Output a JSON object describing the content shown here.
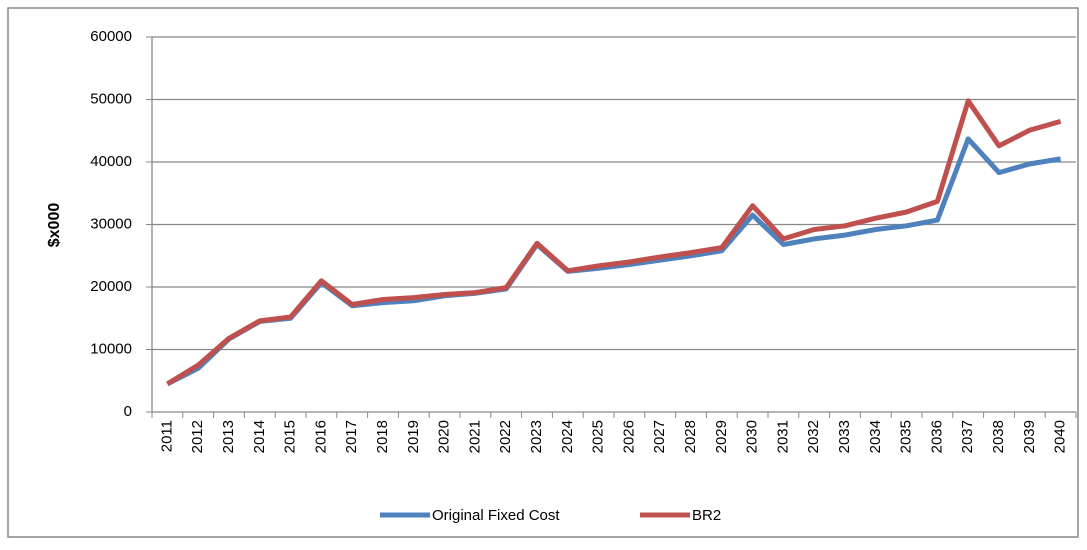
{
  "chart_data": {
    "type": "line",
    "y_label": "$x000",
    "categories": [
      "2011",
      "2012",
      "2013",
      "2014",
      "2015",
      "2016",
      "2017",
      "2018",
      "2019",
      "2020",
      "2021",
      "2022",
      "2023",
      "2024",
      "2025",
      "2026",
      "2027",
      "2028",
      "2029",
      "2030",
      "2031",
      "2032",
      "2033",
      "2034",
      "2035",
      "2036",
      "2037",
      "2038",
      "2039",
      "2040"
    ],
    "series": [
      {
        "name": "Original Fixed Cost",
        "color": "#4f81bd",
        "values": [
          4500,
          7000,
          11700,
          14500,
          15000,
          20700,
          17000,
          17500,
          17800,
          18600,
          19000,
          19700,
          26800,
          22500,
          23000,
          23600,
          24300,
          25000,
          25800,
          31500,
          26800,
          27700,
          28300,
          29200,
          29800,
          30700,
          43700,
          38300,
          39700,
          40500
        ]
      },
      {
        "name": "BR2",
        "color": "#c0504d",
        "values": [
          4500,
          7500,
          11800,
          14600,
          15200,
          21000,
          17200,
          18000,
          18300,
          18800,
          19100,
          19900,
          27000,
          22600,
          23400,
          24000,
          24800,
          25500,
          26300,
          33000,
          27700,
          29200,
          29800,
          31000,
          32000,
          33700,
          49800,
          42600,
          45100,
          46500
        ]
      }
    ],
    "ylim": [
      0,
      60000
    ],
    "yticks": [
      0,
      10000,
      20000,
      30000,
      40000,
      50000,
      60000
    ],
    "grid": true,
    "legend": "bottom"
  }
}
